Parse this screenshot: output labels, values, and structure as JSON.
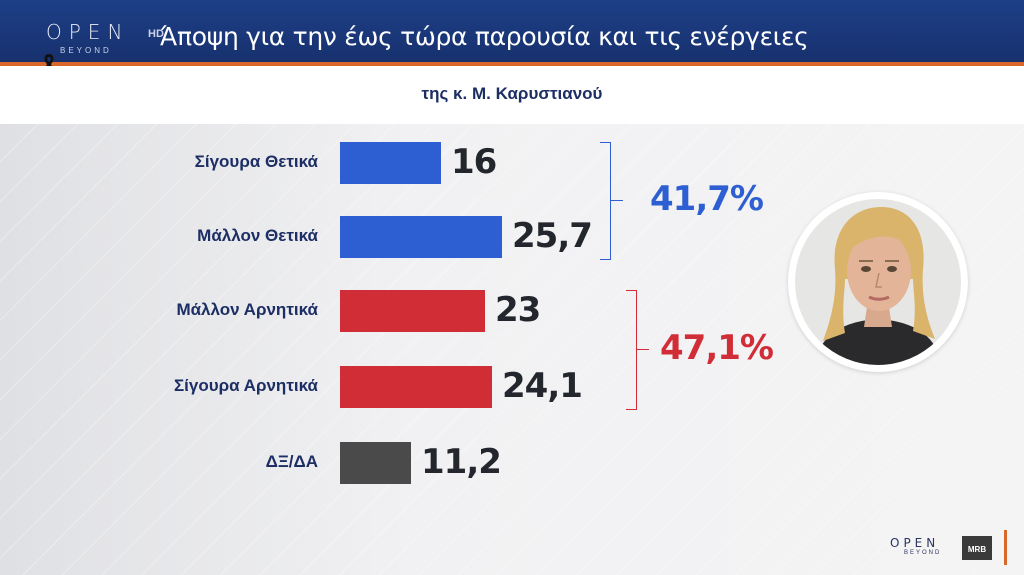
{
  "header": {
    "channel_logo": "OPEN",
    "channel_logo_sub": "BEYOND",
    "channel_hd": "HD",
    "title": "Άποψη για την έως τώρα παρουσία και τις ενέργειες",
    "subtitle": "της κ. Μ. Καρυστιανού"
  },
  "colors": {
    "header_bg": "#1d3f87",
    "header_accent": "#d9672c",
    "positive": "#2e5fd2",
    "negative": "#d12d37",
    "neutral": "#4a4a4a",
    "label_text": "#1c2e64"
  },
  "chart_data": {
    "type": "bar",
    "orientation": "horizontal",
    "categories": [
      "Σίγουρα Θετικά",
      "Μάλλον Θετικά",
      "Μάλλον Αρνητικά",
      "Σίγουρα Αρνητικά",
      "ΔΞ/ΔΑ"
    ],
    "values": [
      16,
      25.7,
      23,
      24.1,
      11.2
    ],
    "value_labels": [
      "16",
      "25,7",
      "23",
      "24,1",
      "11,2"
    ],
    "bar_colors": [
      "#2e5fd2",
      "#2e5fd2",
      "#d12d37",
      "#d12d37",
      "#4a4a4a"
    ],
    "groups": [
      {
        "members": [
          0,
          1
        ],
        "total_label": "41,7%",
        "color": "#2e5fd2"
      },
      {
        "members": [
          2,
          3
        ],
        "total_label": "47,1%",
        "color": "#d12d37"
      }
    ],
    "title": "Άποψη για την έως τώρα παρουσία και τις ενέργειες",
    "subtitle": "της κ. Μ. Καρυστιανού",
    "xlim": [
      0,
      25.7
    ],
    "grid": false,
    "legend": "none"
  },
  "footer": {
    "channel_logo": "OPEN",
    "channel_logo_sub": "BEYOND",
    "pollster_logo": "MRB"
  }
}
